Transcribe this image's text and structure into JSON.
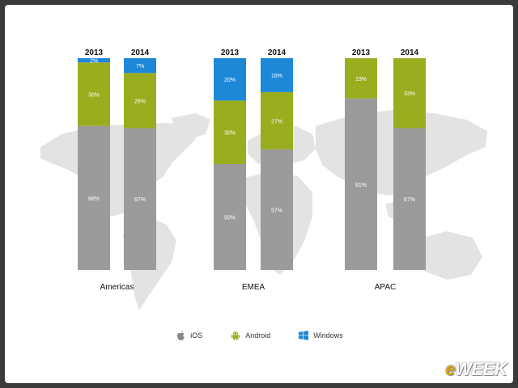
{
  "chart_data": {
    "type": "bar",
    "stacked": true,
    "groups": [
      "Americas",
      "EMEA",
      "APAC"
    ],
    "years": [
      "2013",
      "2014"
    ],
    "series": [
      {
        "name": "iOS",
        "color": "#9b9b9b",
        "values": [
          [
            68,
            67
          ],
          [
            50,
            57
          ],
          [
            81,
            67
          ]
        ],
        "labels": [
          [
            "68%",
            "67%"
          ],
          [
            "50%",
            "57%"
          ],
          [
            "81%",
            "67%"
          ]
        ]
      },
      {
        "name": "Android",
        "color": "#9aad1f",
        "values": [
          [
            30,
            26
          ],
          [
            30,
            27
          ],
          [
            19,
            33
          ]
        ],
        "labels": [
          [
            "30%",
            "26%"
          ],
          [
            "30%",
            "27%"
          ],
          [
            "19%",
            "33%"
          ]
        ]
      },
      {
        "name": "Windows",
        "color": "#1e88d8",
        "values": [
          [
            2,
            7
          ],
          [
            20,
            16
          ],
          [
            0,
            0
          ]
        ],
        "labels": [
          [
            "2%",
            "7%"
          ],
          [
            "20%",
            "16%"
          ],
          [
            "",
            ""
          ]
        ]
      }
    ],
    "ylim": [
      0,
      100
    ],
    "legend_position": "bottom-center",
    "background": "world-map"
  },
  "legend": [
    {
      "label": "iOS",
      "icon": "apple-icon"
    },
    {
      "label": "Android",
      "icon": "android-icon"
    },
    {
      "label": "Windows",
      "icon": "windows-icon"
    }
  ],
  "brand": {
    "e": "e",
    "rest": "WEEK"
  }
}
